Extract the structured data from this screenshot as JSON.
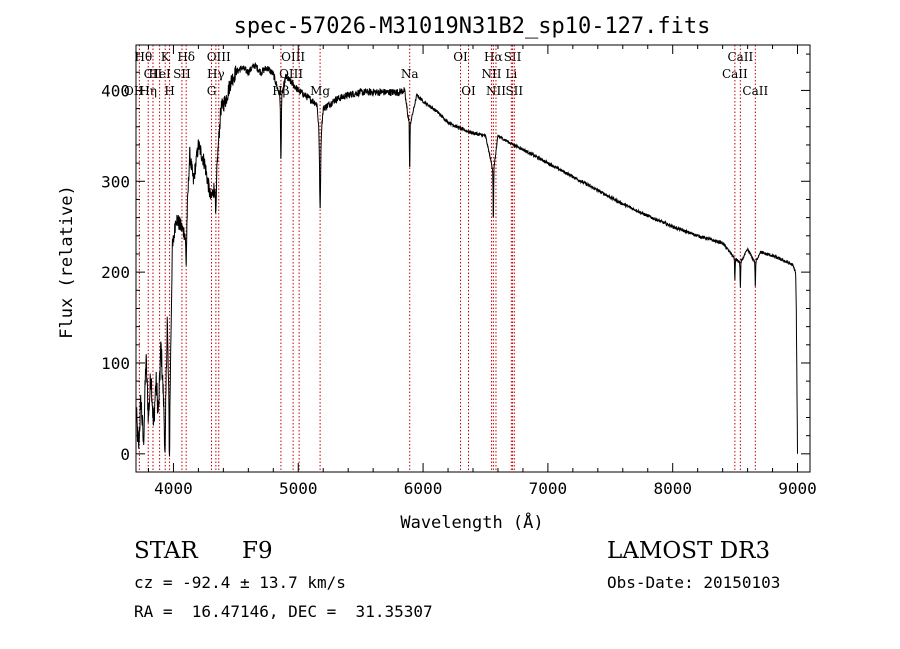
{
  "chart_data": {
    "type": "line",
    "title": "spec-57026-M31019N31B2_sp10-127.fits",
    "xlabel": "Wavelength (Å)",
    "ylabel": "Flux (relative)",
    "xlim": [
      3700,
      9100
    ],
    "ylim": [
      -20,
      450
    ],
    "xticks": [
      4000,
      5000,
      6000,
      7000,
      8000,
      9000
    ],
    "yticks": [
      0,
      100,
      200,
      300,
      400
    ],
    "xtick_labels": [
      "4000",
      "5000",
      "6000",
      "7000",
      "8000",
      "9000"
    ],
    "ytick_labels": [
      "0",
      "100",
      "200",
      "300",
      "400"
    ],
    "spectrum_knots": [
      [
        3700,
        50
      ],
      [
        3720,
        5
      ],
      [
        3740,
        60
      ],
      [
        3760,
        10
      ],
      [
        3780,
        105
      ],
      [
        3800,
        40
      ],
      [
        3820,
        90
      ],
      [
        3840,
        30
      ],
      [
        3860,
        80
      ],
      [
        3880,
        45
      ],
      [
        3900,
        120
      ],
      [
        3920,
        60
      ],
      [
        3933,
        10
      ],
      [
        3950,
        150
      ],
      [
        3968,
        20
      ],
      [
        3990,
        220
      ],
      [
        4020,
        260
      ],
      [
        4060,
        250
      ],
      [
        4102,
        240
      ],
      [
        4130,
        330
      ],
      [
        4160,
        300
      ],
      [
        4200,
        340
      ],
      [
        4250,
        320
      ],
      [
        4300,
        280
      ],
      [
        4340,
        300
      ],
      [
        4380,
        380
      ],
      [
        4420,
        390
      ],
      [
        4460,
        410
      ],
      [
        4500,
        420
      ],
      [
        4550,
        425
      ],
      [
        4600,
        420
      ],
      [
        4650,
        428
      ],
      [
        4700,
        420
      ],
      [
        4750,
        425
      ],
      [
        4800,
        418
      ],
      [
        4861,
        390
      ],
      [
        4900,
        415
      ],
      [
        4950,
        408
      ],
      [
        5000,
        400
      ],
      [
        5050,
        395
      ],
      [
        5100,
        390
      ],
      [
        5150,
        385
      ],
      [
        5175,
        340
      ],
      [
        5200,
        380
      ],
      [
        5300,
        390
      ],
      [
        5400,
        395
      ],
      [
        5500,
        398
      ],
      [
        5600,
        398
      ],
      [
        5700,
        398
      ],
      [
        5800,
        398
      ],
      [
        5850,
        400
      ],
      [
        5893,
        360
      ],
      [
        5950,
        395
      ],
      [
        6000,
        388
      ],
      [
        6100,
        378
      ],
      [
        6200,
        365
      ],
      [
        6300,
        358
      ],
      [
        6400,
        353
      ],
      [
        6500,
        350
      ],
      [
        6563,
        310
      ],
      [
        6600,
        350
      ],
      [
        6700,
        342
      ],
      [
        6800,
        335
      ],
      [
        7000,
        320
      ],
      [
        7200,
        305
      ],
      [
        7400,
        290
      ],
      [
        7600,
        275
      ],
      [
        7800,
        262
      ],
      [
        8000,
        250
      ],
      [
        8200,
        240
      ],
      [
        8400,
        232
      ],
      [
        8498,
        215
      ],
      [
        8542,
        210
      ],
      [
        8600,
        225
      ],
      [
        8662,
        210
      ],
      [
        8700,
        222
      ],
      [
        8800,
        218
      ],
      [
        8900,
        212
      ],
      [
        8960,
        208
      ],
      [
        8985,
        200
      ],
      [
        8990,
        160
      ],
      [
        8995,
        80
      ],
      [
        9000,
        0
      ]
    ],
    "absorption_dips": [
      [
        3933,
        20,
        4
      ],
      [
        3968,
        25,
        4
      ],
      [
        4102,
        30,
        5
      ],
      [
        4340,
        40,
        6
      ],
      [
        4861,
        70,
        4
      ],
      [
        5175,
        70,
        6
      ],
      [
        5893,
        50,
        3
      ],
      [
        6563,
        55,
        3
      ],
      [
        8498,
        25,
        3
      ],
      [
        8542,
        28,
        3
      ],
      [
        8662,
        25,
        3
      ]
    ],
    "line_markers": [
      {
        "label": "Hθ",
        "x": 3798,
        "row": 0,
        "side": "right"
      },
      {
        "label": "CII",
        "x": 3836,
        "row": 1,
        "side": "center"
      },
      {
        "label": "OII",
        "x": 3727,
        "row": 2,
        "side": "right"
      },
      {
        "label": "Hη",
        "x": 3836,
        "row": 2,
        "side": "right"
      },
      {
        "label": "K",
        "x": 3934,
        "row": 0,
        "side": "center"
      },
      {
        "label": "HeI",
        "x": 3889,
        "row": 1,
        "side": "center"
      },
      {
        "label": "H",
        "x": 3969,
        "row": 2,
        "side": "center"
      },
      {
        "label": "SII",
        "x": 4068,
        "row": 1,
        "side": "center"
      },
      {
        "label": "Hδ",
        "x": 4102,
        "row": 0,
        "side": "center"
      },
      {
        "label": "OIII",
        "x": 4363,
        "row": 0,
        "side": "center"
      },
      {
        "label": "Hγ",
        "x": 4340,
        "row": 1,
        "side": "center"
      },
      {
        "label": "G",
        "x": 4305,
        "row": 2,
        "side": "center"
      },
      {
        "label": "OIII",
        "x": 4959,
        "row": 0,
        "side": "center"
      },
      {
        "label": "OIII",
        "x": 5007,
        "row": 1,
        "side": "right"
      },
      {
        "label": "Hβ",
        "x": 4861,
        "row": 2,
        "side": "center"
      },
      {
        "label": "Mg",
        "x": 5175,
        "row": 2,
        "side": "center"
      },
      {
        "label": "Na",
        "x": 5893,
        "row": 1,
        "side": "center"
      },
      {
        "label": "OI",
        "x": 6300,
        "row": 0,
        "side": "center"
      },
      {
        "label": "OI",
        "x": 6364,
        "row": 2,
        "side": "center"
      },
      {
        "label": "Hα",
        "x": 6563,
        "row": 0,
        "side": "center"
      },
      {
        "label": "NII",
        "x": 6548,
        "row": 1,
        "side": "center"
      },
      {
        "label": "NII",
        "x": 6584,
        "row": 2,
        "side": "center"
      },
      {
        "label": "SII",
        "x": 6717,
        "row": 0,
        "side": "center"
      },
      {
        "label": "Li",
        "x": 6707,
        "row": 1,
        "side": "center"
      },
      {
        "label": "SII",
        "x": 6731,
        "row": 2,
        "side": "center"
      },
      {
        "label": "CaII",
        "x": 8542,
        "row": 0,
        "side": "center"
      },
      {
        "label": "CaII",
        "x": 8498,
        "row": 1,
        "side": "center"
      },
      {
        "label": "CaII",
        "x": 8662,
        "row": 2,
        "side": "center"
      }
    ]
  },
  "info": {
    "object_class": "STAR",
    "subclass": "F9",
    "survey": "LAMOST DR3",
    "redshift_line": "cz = -92.4 ± 13.7 km/s",
    "obs_date_line": "Obs-Date: 20150103",
    "coords_line": "RA =  16.47146, DEC =  31.35307"
  },
  "colors": {
    "spectrum": "#000000",
    "marker_line": "#cc0000",
    "axis": "#000000",
    "background": "#ffffff"
  }
}
